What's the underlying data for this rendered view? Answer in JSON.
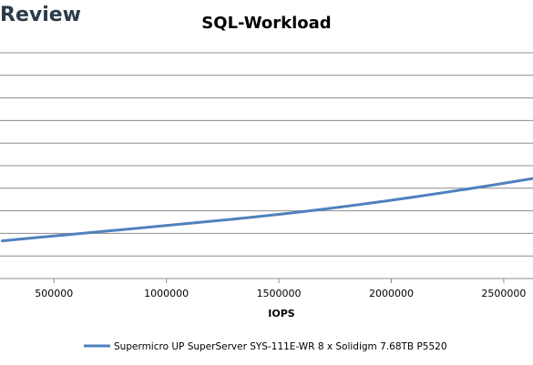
{
  "watermark_text": "Review",
  "chart_data": {
    "type": "line",
    "title": "SQL-Workload",
    "xlabel": "IOPS",
    "ylabel": "",
    "x_ticks": [
      500000,
      1000000,
      1500000,
      2000000,
      2500000
    ],
    "x_tick_labels": [
      "500000",
      "1000000",
      "1500000",
      "2000000",
      "2500000"
    ],
    "xlim": [
      260000,
      2630000
    ],
    "grid": true,
    "legend_position": "bottom",
    "series": [
      {
        "name": "Supermicro UP SuperServer SYS-111E-WR 8 x Solidigm 7.68TB P5520",
        "color": "#4f81bd",
        "points": [
          [
            270000,
            0.833
          ],
          [
            500000,
            0.811
          ],
          [
            1000000,
            0.766
          ],
          [
            1500000,
            0.717
          ],
          [
            1900000,
            0.668
          ],
          [
            2300000,
            0.61
          ],
          [
            2630000,
            0.557
          ]
        ]
      }
    ]
  }
}
